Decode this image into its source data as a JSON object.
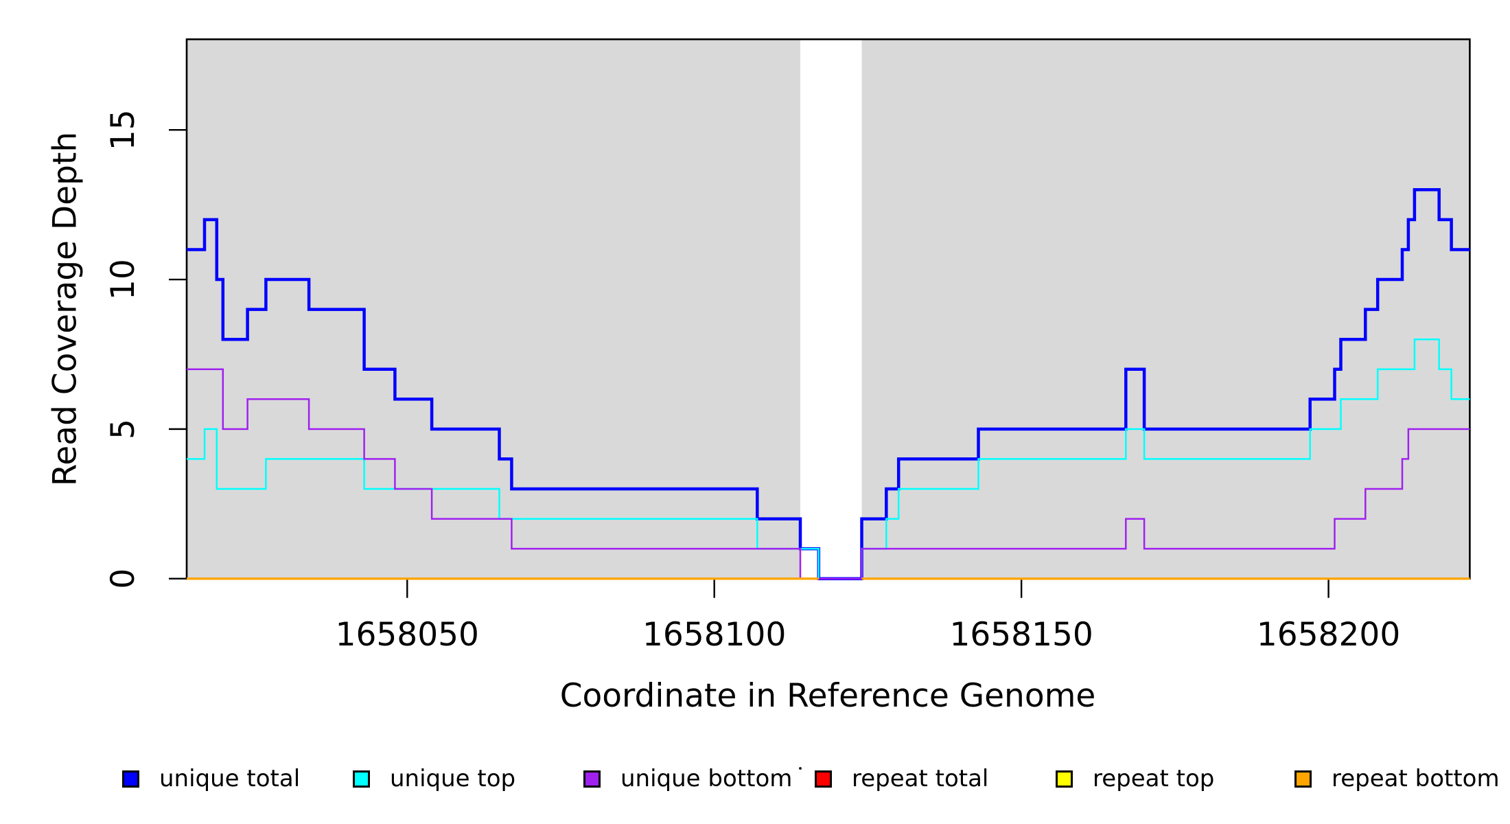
{
  "figure": {
    "background": "#FFFFFF"
  },
  "chart_data": {
    "type": "line",
    "subtype": "step-post",
    "title": "",
    "xlabel": "Coordinate in Reference Genome",
    "ylabel": "Read Coverage Depth",
    "xlim": [
      1658014.1,
      1658223.0
    ],
    "ylim": [
      0,
      18.03
    ],
    "x_ticks": [
      1658050,
      1658100,
      1658150,
      1658200
    ],
    "x_tick_labels": [
      "1658050",
      "1658100",
      "1658150",
      "1658200"
    ],
    "y_ticks": [
      0,
      5,
      10,
      15
    ],
    "y_tick_labels": [
      "0",
      "5",
      "10",
      "15"
    ],
    "grid": false,
    "legend_position": "bottom-horizontal",
    "shade_color": "#D9D9D9",
    "plot_bg_shaded_regions": [
      [
        1658014.1,
        1658114
      ],
      [
        1658124,
        1658223
      ]
    ],
    "gap_region": [
      1658114,
      1658124
    ],
    "series": [
      {
        "name": "unique total",
        "color": "#0000FF",
        "line_width": 4.5,
        "parts": [
          {
            "points": [
              [
                1658014.1,
                11
              ],
              [
                1658017,
                12
              ],
              [
                1658019,
                10
              ],
              [
                1658020,
                8
              ],
              [
                1658024,
                9
              ],
              [
                1658027,
                10
              ],
              [
                1658034,
                9
              ],
              [
                1658043,
                7
              ],
              [
                1658048,
                6
              ],
              [
                1658054,
                5
              ],
              [
                1658065,
                4
              ],
              [
                1658067,
                3
              ],
              [
                1658107,
                2
              ],
              [
                1658114,
                1
              ],
              [
                1658117,
                0
              ],
              [
                1658124,
                2
              ],
              [
                1658128,
                3
              ],
              [
                1658130,
                4
              ],
              [
                1658143,
                5
              ],
              [
                1658167,
                7
              ],
              [
                1658170,
                5
              ],
              [
                1658197,
                6
              ],
              [
                1658201,
                7
              ],
              [
                1658202,
                8
              ],
              [
                1658206,
                9
              ],
              [
                1658208,
                10
              ],
              [
                1658212,
                11
              ],
              [
                1658213,
                12
              ],
              [
                1658214,
                13
              ],
              [
                1658218,
                12
              ],
              [
                1658220,
                11
              ]
            ],
            "end": 1658223
          }
        ]
      },
      {
        "name": "unique top",
        "color": "#00FFFF",
        "line_width": 2.5,
        "parts": [
          {
            "points": [
              [
                1658014.1,
                4
              ],
              [
                1658017,
                5
              ],
              [
                1658019,
                3
              ],
              [
                1658027,
                4
              ],
              [
                1658043,
                3
              ],
              [
                1658065,
                2
              ],
              [
                1658107,
                1
              ],
              [
                1658117,
                0
              ],
              [
                1658124,
                1
              ],
              [
                1658128,
                2
              ],
              [
                1658130,
                3
              ],
              [
                1658143,
                4
              ],
              [
                1658167,
                5
              ],
              [
                1658170,
                4
              ],
              [
                1658197,
                5
              ],
              [
                1658202,
                6
              ],
              [
                1658208,
                7
              ],
              [
                1658214,
                8
              ],
              [
                1658218,
                7
              ],
              [
                1658220,
                6
              ]
            ],
            "end": 1658223
          }
        ]
      },
      {
        "name": "unique bottom",
        "color": "#A020F0",
        "line_width": 2.5,
        "parts": [
          {
            "points": [
              [
                1658014.1,
                7
              ],
              [
                1658020,
                5
              ],
              [
                1658024,
                6
              ],
              [
                1658034,
                5
              ],
              [
                1658043,
                4
              ],
              [
                1658048,
                3
              ],
              [
                1658054,
                2
              ],
              [
                1658067,
                1
              ],
              [
                1658114,
                0
              ],
              [
                1658124,
                1
              ],
              [
                1658167,
                2
              ],
              [
                1658170,
                1
              ],
              [
                1658201,
                2
              ],
              [
                1658206,
                3
              ],
              [
                1658212,
                4
              ],
              [
                1658213,
                5
              ]
            ],
            "end": 1658223
          }
        ]
      },
      {
        "name": "repeat total",
        "color": "#FF0000",
        "line_width": 3,
        "parts": [
          {
            "points": [
              [
                1658014.1,
                0
              ]
            ],
            "end": 1658117
          },
          {
            "points": [
              [
                1658124,
                0
              ]
            ],
            "end": 1658223
          }
        ]
      },
      {
        "name": "repeat top",
        "color": "#FFFF00",
        "line_width": 3,
        "parts": [
          {
            "points": [
              [
                1658014.1,
                0
              ]
            ],
            "end": 1658117
          },
          {
            "points": [
              [
                1658124,
                0
              ]
            ],
            "end": 1658223
          }
        ]
      },
      {
        "name": "repeat bottom",
        "color": "#FFA500",
        "line_width": 3,
        "parts": [
          {
            "points": [
              [
                1658014.1,
                0
              ]
            ],
            "end": 1658117
          },
          {
            "points": [
              [
                1658124,
                0
              ]
            ],
            "end": 1658223
          }
        ]
      }
    ]
  },
  "legend": {
    "items": [
      {
        "label": "unique total",
        "color": "#0000FF"
      },
      {
        "label": "unique top",
        "color": "#00FFFF"
      },
      {
        "label": "unique bottom",
        "color": "#A020F0"
      },
      {
        "label": "repeat total",
        "color": "#FF0000"
      },
      {
        "label": "repeat top",
        "color": "#FFFF00"
      },
      {
        "label": "repeat bottom",
        "color": "#FFA500"
      }
    ]
  }
}
